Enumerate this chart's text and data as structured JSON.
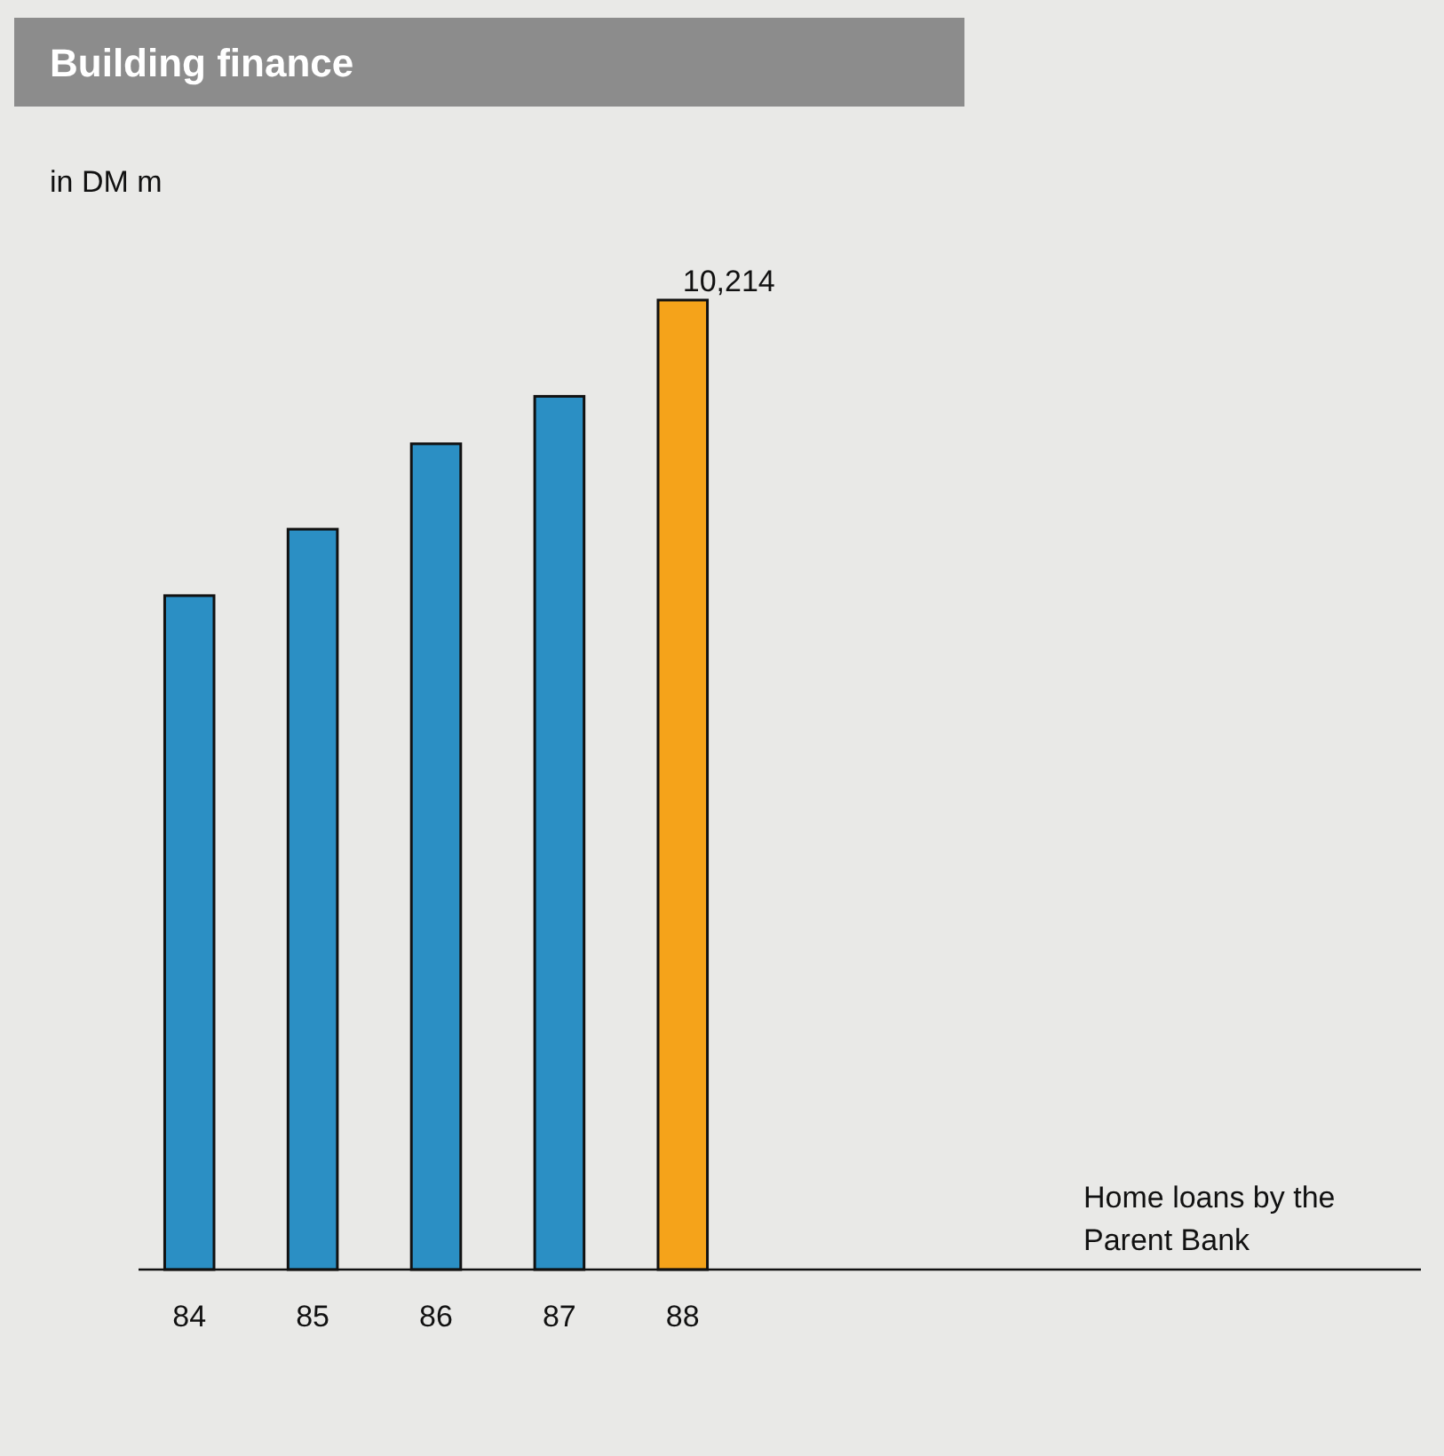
{
  "chart_data": {
    "type": "bar",
    "title": "Building finance",
    "ylabel": "in DM m",
    "categories": [
      "84",
      "85",
      "86",
      "87",
      "88"
    ],
    "values": [
      7100,
      7800,
      8700,
      9200,
      10214
    ],
    "colors": [
      "#2b8fc4",
      "#2b8fc4",
      "#2b8fc4",
      "#2b8fc4",
      "#f5a31a"
    ],
    "value_labels": [
      null,
      null,
      null,
      null,
      "10,214"
    ],
    "annotations": [
      "Home loans by the Parent Bank"
    ]
  }
}
